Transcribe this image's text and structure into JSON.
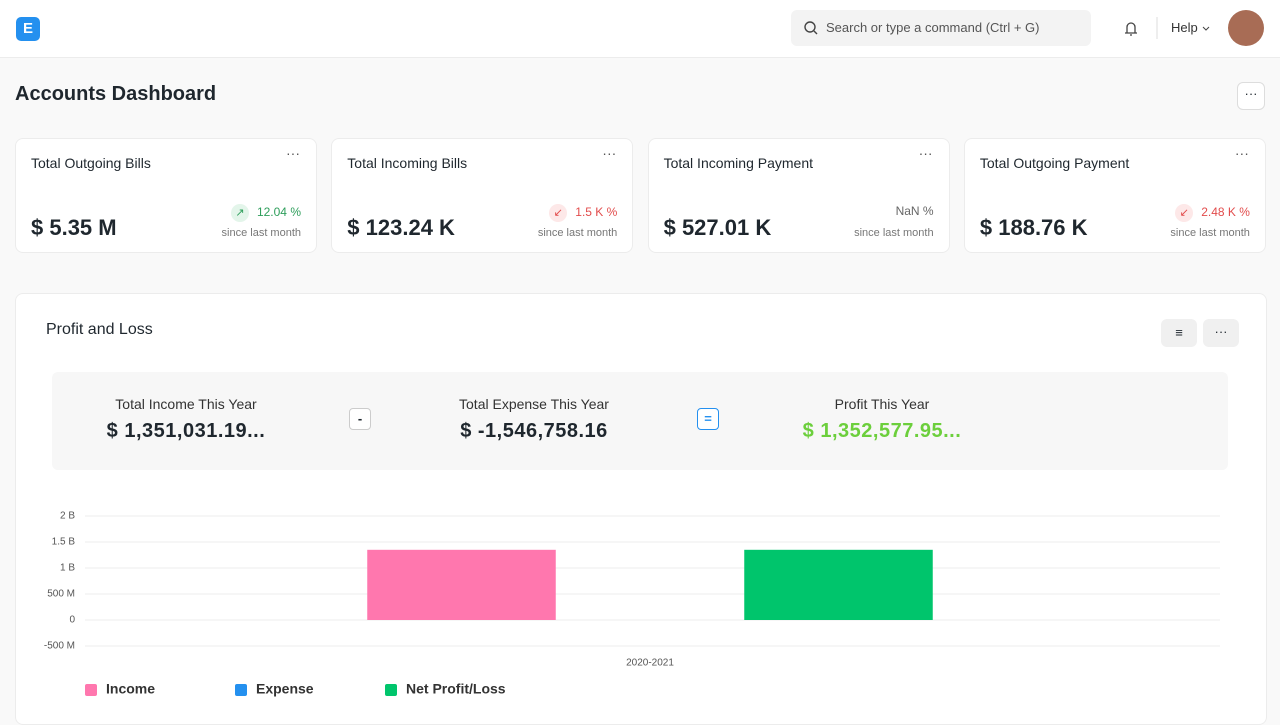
{
  "navbar": {
    "search_placeholder": "Search or type a command (Ctrl + G)",
    "help": "Help"
  },
  "page_title": "Accounts Dashboard",
  "cards": [
    {
      "title": "Total Outgoing Bills",
      "value": "$ 5.35 M",
      "change": "12.04 %",
      "caption": "since last month"
    },
    {
      "title": "Total Incoming Bills",
      "value": "$ 123.24 K",
      "change": "1.5 K %",
      "caption": "since last month"
    },
    {
      "title": "Total Incoming Payment",
      "value": "$ 527.01 K",
      "change": "NaN %",
      "caption": "since last month"
    },
    {
      "title": "Total Outgoing Payment",
      "value": "$ 188.76 K",
      "change": "2.48 K %",
      "caption": "since last month"
    }
  ],
  "profit_and_loss": {
    "title": "Profit and Loss",
    "summary": [
      {
        "label": "Total Income This Year",
        "value": "$ 1,351,031.19..."
      },
      {
        "label": "Total Expense This Year",
        "value": "$ -1,546,758.16"
      },
      {
        "label": "Profit This Year",
        "value": "$ 1,352,577.95..."
      }
    ],
    "operators": [
      "-",
      "="
    ]
  },
  "chart_data": {
    "type": "bar",
    "categories": [
      "2020-2021"
    ],
    "series": [
      {
        "name": "Income",
        "color": "#ff77ae",
        "values": [
          1350000000
        ]
      },
      {
        "name": "Expense",
        "color": "#2490ef",
        "values": [
          null
        ]
      },
      {
        "name": "Net Profit/Loss",
        "color": "#00c56c",
        "values": [
          1350000000
        ]
      }
    ],
    "ylim": [
      -500000000,
      2000000000
    ],
    "yticks": [
      {
        "value": -500000000,
        "label": "-500 M"
      },
      0,
      {
        "value": 500000000,
        "label": "500 M"
      },
      {
        "value": 1000000000,
        "label": "1 B"
      },
      {
        "value": 1500000000,
        "label": "1.5 B"
      },
      {
        "value": 2000000000,
        "label": "2 B"
      }
    ],
    "grid": true
  }
}
